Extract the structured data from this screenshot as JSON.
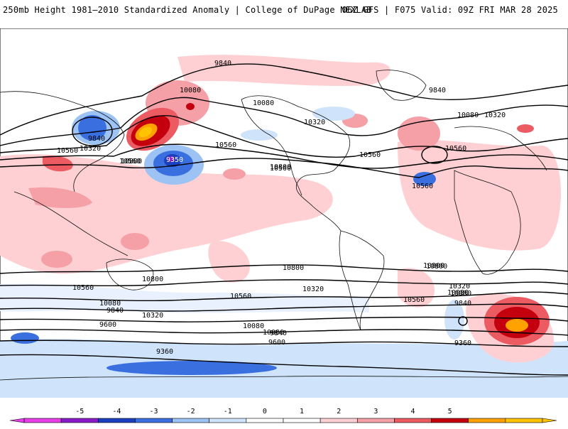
{
  "header": {
    "title": "250mb Height 1981–2010 Standardized Anomaly | College of DuPage NEXLAB",
    "run": "06Z GFS | F075 Valid: 09Z FRI MAR 28 2025"
  },
  "contour_labels": [
    "9840",
    "9840",
    "9840",
    "9840",
    "9840",
    "10080",
    "10080",
    "10080",
    "10080",
    "10080",
    "10080",
    "10080",
    "10320",
    "10320",
    "10320",
    "10320",
    "10320",
    "10320",
    "10560",
    "10560",
    "10560",
    "10560",
    "10560",
    "10560",
    "10560",
    "10560",
    "10560",
    "10560",
    "10800",
    "10800",
    "10800",
    "10800",
    "10800",
    "10800",
    "10080",
    "9840",
    "9600",
    "9600",
    "9360",
    "9360",
    "9350"
  ],
  "colorbar": {
    "ticks": [
      "-5",
      "-4",
      "-3",
      "-2",
      "-1",
      "0",
      "1",
      "2",
      "3",
      "4",
      "5"
    ],
    "colors": [
      "#e83ee8",
      "#8a1bc9",
      "#1a3fbf",
      "#3a6fe0",
      "#9dc3f5",
      "#cfe3fb",
      "#ffffff",
      "#ffffff",
      "#ffd0d3",
      "#f5a0a6",
      "#ec5a62",
      "#c4000f",
      "#ffa200",
      "#ffc300"
    ]
  }
}
